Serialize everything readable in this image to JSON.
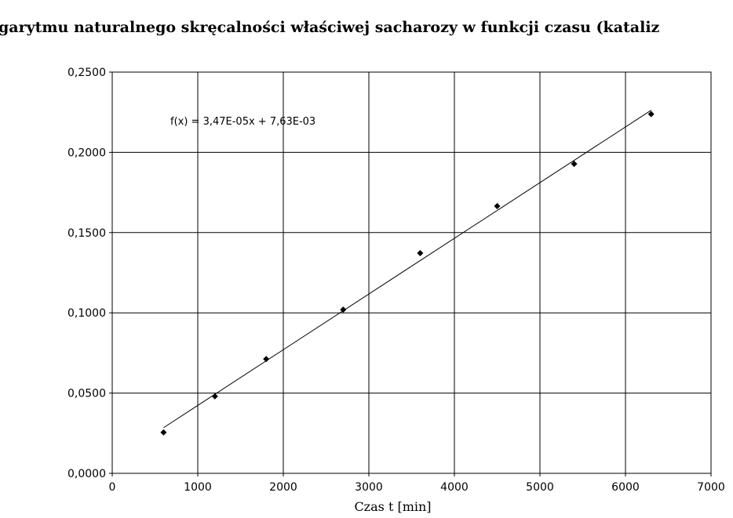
{
  "chart_data": {
    "type": "scatter",
    "title": "garytmu naturalnego skręcalności właściwej sacharozy w funkcji czasu (kataliz",
    "xlabel": "Czas t [min]",
    "ylabel": "",
    "xlim": [
      0,
      7000
    ],
    "ylim": [
      0,
      0.25
    ],
    "x_ticks": [
      0,
      1000,
      2000,
      3000,
      4000,
      5000,
      6000,
      7000
    ],
    "x_tick_labels": [
      "0",
      "1000",
      "2000",
      "3000",
      "4000",
      "5000",
      "6000",
      "7000"
    ],
    "y_ticks": [
      0,
      0.05,
      0.1,
      0.15,
      0.2,
      0.25
    ],
    "y_tick_labels": [
      "0,0000",
      "0,0500",
      "0,1000",
      "0,1500",
      "0,2000",
      "0,2500"
    ],
    "grid": true,
    "series": [
      {
        "x": [
          600,
          1200,
          1800,
          2700,
          3600,
          4500,
          5400,
          6300
        ],
        "y": [
          0.0255,
          0.048,
          0.0712,
          0.102,
          0.1372,
          0.1665,
          0.1928,
          0.2238
        ],
        "marker": "diamond",
        "color": "#000000"
      }
    ],
    "trendline": {
      "slope": 3.47e-05,
      "intercept": 0.00763,
      "x_range": [
        600,
        6300
      ],
      "label": "f(x) = 3,47E-05x + 7,63E-03",
      "color": "#000000"
    }
  }
}
